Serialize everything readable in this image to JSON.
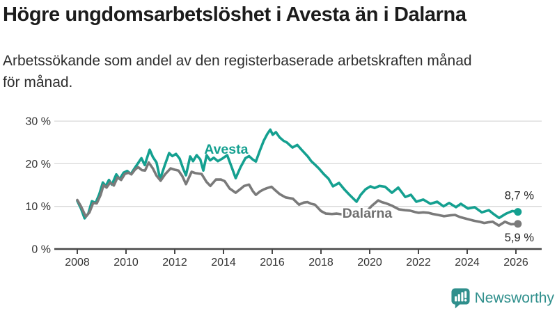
{
  "header": {
    "title": "Högre ungdomsarbetslöshet i Avesta än i Dalarna",
    "subtitle_line1": "Arbetssökande som andel av den registerbaserade arbetskraften månad",
    "subtitle_line2": "för månad."
  },
  "footer": {
    "brand": "Newsworthy",
    "brand_color": "#2f8f8c"
  },
  "colors": {
    "avesta": "#14A090",
    "dalarna": "#7A7A7A",
    "grid": "#d8d8d8",
    "axis": "#474747",
    "tick_text": "#333333",
    "end_label_text": "#222222"
  },
  "chart_data": {
    "type": "line",
    "title": "Högre ungdomsarbetslöshet i Avesta än i Dalarna",
    "subtitle": "Arbetssökande som andel av den registerbaserade arbetskraften månad för månad.",
    "grid": true,
    "legend_position": "inline-labels",
    "x_axis": {
      "ticks": [
        2008,
        2010,
        2012,
        2014,
        2016,
        2018,
        2020,
        2022,
        2024,
        2026
      ],
      "range": [
        2007.1,
        2026.6
      ]
    },
    "y_axis": {
      "ticks": [
        0,
        10,
        20,
        30
      ],
      "tick_labels": [
        "0 %",
        "10 %",
        "20 %",
        "30 %"
      ],
      "range": [
        0,
        30
      ],
      "unit": "percent"
    },
    "series": [
      {
        "name": "Avesta",
        "color": "#14A090",
        "label_color": "#14A090",
        "label_halo": false,
        "label_anchor": {
          "t": 2014.11,
          "v": 23.5
        },
        "end_label": "8,7 %",
        "end_value": 8.7,
        "end_label_side": "above",
        "points": [
          [
            2008.0,
            11.3
          ],
          [
            2008.15,
            9.5
          ],
          [
            2008.3,
            7.2
          ],
          [
            2008.45,
            8.3
          ],
          [
            2008.6,
            11.2
          ],
          [
            2008.75,
            10.8
          ],
          [
            2008.9,
            12.8
          ],
          [
            2009.05,
            15.6
          ],
          [
            2009.17,
            14.8
          ],
          [
            2009.3,
            16.2
          ],
          [
            2009.42,
            15.1
          ],
          [
            2009.6,
            17.5
          ],
          [
            2009.74,
            16.4
          ],
          [
            2009.9,
            17.9
          ],
          [
            2010.05,
            18.3
          ],
          [
            2010.2,
            17.6
          ],
          [
            2010.35,
            18.9
          ],
          [
            2010.5,
            20.2
          ],
          [
            2010.63,
            21.3
          ],
          [
            2010.77,
            19.7
          ],
          [
            2010.97,
            23.3
          ],
          [
            2011.1,
            21.6
          ],
          [
            2011.25,
            20.3
          ],
          [
            2011.4,
            16.4
          ],
          [
            2011.6,
            19.8
          ],
          [
            2011.77,
            22.5
          ],
          [
            2011.9,
            21.8
          ],
          [
            2012.05,
            22.3
          ],
          [
            2012.2,
            21.2
          ],
          [
            2012.35,
            18.8
          ],
          [
            2012.46,
            17.3
          ],
          [
            2012.63,
            21.7
          ],
          [
            2012.75,
            20.6
          ],
          [
            2012.9,
            22.0
          ],
          [
            2013.05,
            21.0
          ],
          [
            2013.17,
            18.4
          ],
          [
            2013.31,
            22.0
          ],
          [
            2013.45,
            20.8
          ],
          [
            2013.6,
            21.4
          ],
          [
            2013.77,
            20.6
          ],
          [
            2013.95,
            21.2
          ],
          [
            2014.15,
            22.0
          ],
          [
            2014.35,
            19.0
          ],
          [
            2014.5,
            16.6
          ],
          [
            2014.7,
            19.2
          ],
          [
            2014.9,
            21.3
          ],
          [
            2015.05,
            21.8
          ],
          [
            2015.2,
            21.0
          ],
          [
            2015.33,
            20.5
          ],
          [
            2015.5,
            23.2
          ],
          [
            2015.65,
            25.4
          ],
          [
            2015.8,
            27.0
          ],
          [
            2015.92,
            28.0
          ],
          [
            2016.02,
            26.8
          ],
          [
            2016.15,
            27.4
          ],
          [
            2016.3,
            26.2
          ],
          [
            2016.46,
            25.4
          ],
          [
            2016.6,
            25.0
          ],
          [
            2016.83,
            23.8
          ],
          [
            2017.03,
            24.4
          ],
          [
            2017.2,
            23.3
          ],
          [
            2017.46,
            21.7
          ],
          [
            2017.6,
            20.6
          ],
          [
            2017.77,
            19.7
          ],
          [
            2017.91,
            18.9
          ],
          [
            2018.11,
            17.6
          ],
          [
            2018.31,
            16.5
          ],
          [
            2018.49,
            14.7
          ],
          [
            2018.74,
            15.5
          ],
          [
            2018.97,
            13.9
          ],
          [
            2019.17,
            12.7
          ],
          [
            2019.46,
            11.1
          ],
          [
            2019.63,
            12.7
          ],
          [
            2019.83,
            14.0
          ],
          [
            2020.03,
            14.7
          ],
          [
            2020.2,
            14.3
          ],
          [
            2020.4,
            14.8
          ],
          [
            2020.63,
            14.6
          ],
          [
            2020.91,
            13.2
          ],
          [
            2021.17,
            14.4
          ],
          [
            2021.46,
            12.2
          ],
          [
            2021.69,
            12.7
          ],
          [
            2021.91,
            11.1
          ],
          [
            2022.2,
            11.6
          ],
          [
            2022.49,
            10.6
          ],
          [
            2022.77,
            11.1
          ],
          [
            2023.03,
            10.0
          ],
          [
            2023.26,
            10.8
          ],
          [
            2023.54,
            9.8
          ],
          [
            2023.74,
            10.6
          ],
          [
            2024.03,
            9.5
          ],
          [
            2024.31,
            9.8
          ],
          [
            2024.6,
            8.6
          ],
          [
            2024.89,
            9.1
          ],
          [
            2025.06,
            8.3
          ],
          [
            2025.31,
            7.3
          ],
          [
            2025.6,
            8.3
          ],
          [
            2025.85,
            8.9
          ],
          [
            2026.08,
            8.7
          ]
        ]
      },
      {
        "name": "Dalarna",
        "color": "#7A7A7A",
        "label_color": "#6F6F6F",
        "label_halo": true,
        "label_anchor": {
          "t": 2019.9,
          "v": 8.5
        },
        "end_label": "5,9 %",
        "end_value": 5.9,
        "end_label_side": "below",
        "points": [
          [
            2008.0,
            11.5
          ],
          [
            2008.15,
            10.0
          ],
          [
            2008.35,
            7.6
          ],
          [
            2008.5,
            8.6
          ],
          [
            2008.65,
            10.8
          ],
          [
            2008.8,
            10.7
          ],
          [
            2008.95,
            12.6
          ],
          [
            2009.08,
            15.0
          ],
          [
            2009.2,
            14.4
          ],
          [
            2009.35,
            15.6
          ],
          [
            2009.5,
            14.9
          ],
          [
            2009.65,
            16.8
          ],
          [
            2009.8,
            16.2
          ],
          [
            2009.95,
            17.6
          ],
          [
            2010.1,
            17.9
          ],
          [
            2010.22,
            17.5
          ],
          [
            2010.38,
            18.7
          ],
          [
            2010.5,
            19.2
          ],
          [
            2010.65,
            18.5
          ],
          [
            2010.78,
            18.4
          ],
          [
            2010.93,
            20.3
          ],
          [
            2011.1,
            18.9
          ],
          [
            2011.25,
            17.2
          ],
          [
            2011.42,
            16.0
          ],
          [
            2011.6,
            17.5
          ],
          [
            2011.83,
            18.9
          ],
          [
            2012.0,
            18.6
          ],
          [
            2012.15,
            18.4
          ],
          [
            2012.31,
            17.1
          ],
          [
            2012.46,
            15.2
          ],
          [
            2012.69,
            18.1
          ],
          [
            2012.85,
            17.8
          ],
          [
            2013.1,
            17.6
          ],
          [
            2013.31,
            15.7
          ],
          [
            2013.46,
            14.8
          ],
          [
            2013.69,
            16.3
          ],
          [
            2013.9,
            16.3
          ],
          [
            2014.05,
            15.9
          ],
          [
            2014.25,
            14.2
          ],
          [
            2014.5,
            13.2
          ],
          [
            2014.7,
            14.1
          ],
          [
            2014.85,
            14.8
          ],
          [
            2015.05,
            15.1
          ],
          [
            2015.2,
            13.6
          ],
          [
            2015.33,
            12.7
          ],
          [
            2015.5,
            13.5
          ],
          [
            2015.66,
            14.0
          ],
          [
            2015.8,
            14.3
          ],
          [
            2015.97,
            14.6
          ],
          [
            2016.12,
            13.8
          ],
          [
            2016.3,
            12.9
          ],
          [
            2016.55,
            12.1
          ],
          [
            2016.85,
            11.8
          ],
          [
            2017.1,
            10.4
          ],
          [
            2017.3,
            10.9
          ],
          [
            2017.45,
            11.0
          ],
          [
            2017.6,
            10.6
          ],
          [
            2017.75,
            10.4
          ],
          [
            2018.0,
            8.9
          ],
          [
            2018.2,
            8.3
          ],
          [
            2018.45,
            8.2
          ],
          [
            2018.65,
            8.3
          ],
          [
            2018.9,
            8.1
          ],
          [
            2019.1,
            8.3
          ],
          [
            2019.3,
            8.4
          ],
          [
            2019.5,
            8.3
          ],
          [
            2019.7,
            8.6
          ],
          [
            2019.9,
            9.0
          ],
          [
            2020.1,
            10.2
          ],
          [
            2020.35,
            11.4
          ],
          [
            2020.5,
            11.0
          ],
          [
            2020.68,
            10.7
          ],
          [
            2020.9,
            10.2
          ],
          [
            2021.2,
            9.3
          ],
          [
            2021.45,
            9.1
          ],
          [
            2021.65,
            9.0
          ],
          [
            2021.85,
            8.7
          ],
          [
            2022.0,
            8.5
          ],
          [
            2022.2,
            8.6
          ],
          [
            2022.4,
            8.5
          ],
          [
            2022.6,
            8.2
          ],
          [
            2022.8,
            8.0
          ],
          [
            2023.05,
            7.7
          ],
          [
            2023.3,
            7.9
          ],
          [
            2023.5,
            8.0
          ],
          [
            2023.7,
            7.5
          ],
          [
            2023.9,
            7.2
          ],
          [
            2024.1,
            6.9
          ],
          [
            2024.3,
            6.6
          ],
          [
            2024.5,
            6.4
          ],
          [
            2024.7,
            6.1
          ],
          [
            2024.9,
            6.3
          ],
          [
            2025.05,
            6.4
          ],
          [
            2025.3,
            5.5
          ],
          [
            2025.55,
            6.4
          ],
          [
            2025.8,
            5.8
          ],
          [
            2026.08,
            5.9
          ]
        ]
      }
    ]
  }
}
